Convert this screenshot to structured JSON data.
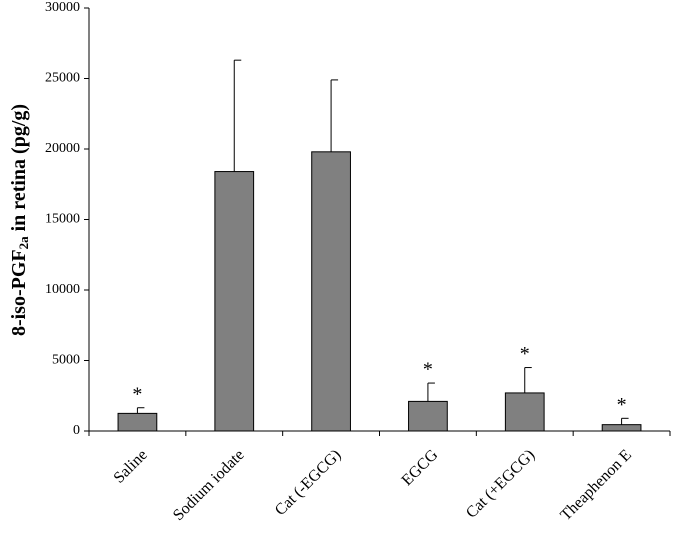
{
  "chart_data": {
    "type": "bar",
    "ylabel": [
      "8-iso-PGF",
      "2a",
      " in retina (pg/g)"
    ],
    "categories": [
      "Saline",
      "Sodium iodate",
      "Cat (-EGCG)",
      "EGCG",
      "Cat (+EGCG)",
      "Theaphenon E"
    ],
    "values": [
      1250,
      18400,
      19800,
      2100,
      2700,
      450
    ],
    "errors": [
      400,
      7900,
      5100,
      1300,
      1800,
      450
    ],
    "significance": [
      "*",
      null,
      null,
      "*",
      "*",
      "*"
    ],
    "color": "#808080",
    "ylim": [
      0,
      30000
    ],
    "yticks": [
      0,
      5000,
      10000,
      15000,
      20000,
      25000,
      30000
    ],
    "grid": false
  }
}
